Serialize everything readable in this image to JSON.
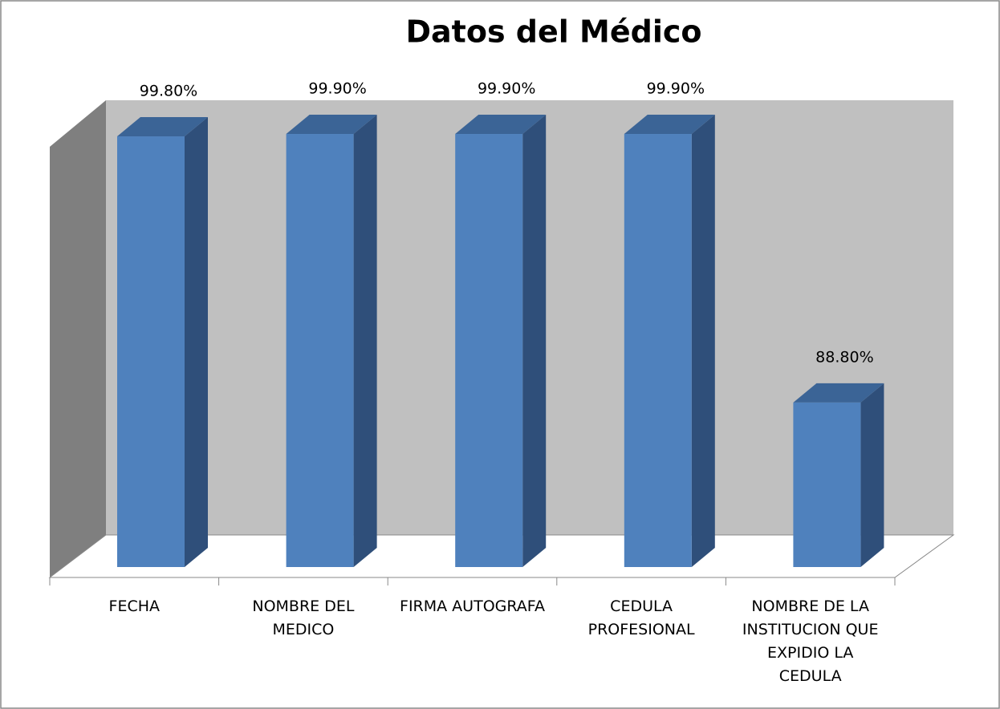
{
  "chart_data": {
    "type": "bar3d",
    "title": "Datos del Médico",
    "categories": [
      "FECHA",
      "NOMBRE DEL MEDICO",
      "FIRMA AUTOGRAFA",
      "CEDULA PROFESIONAL",
      "NOMBRE DE LA INSTITUCION QUE EXPIDIO LA CEDULA"
    ],
    "values": [
      99.8,
      99.9,
      99.9,
      99.9,
      88.8
    ],
    "value_labels": [
      "99.80%",
      "99.90%",
      "99.90%",
      "99.90%",
      "88.80%"
    ],
    "color": "#4f81bd",
    "ylim": [
      82,
      100
    ]
  }
}
